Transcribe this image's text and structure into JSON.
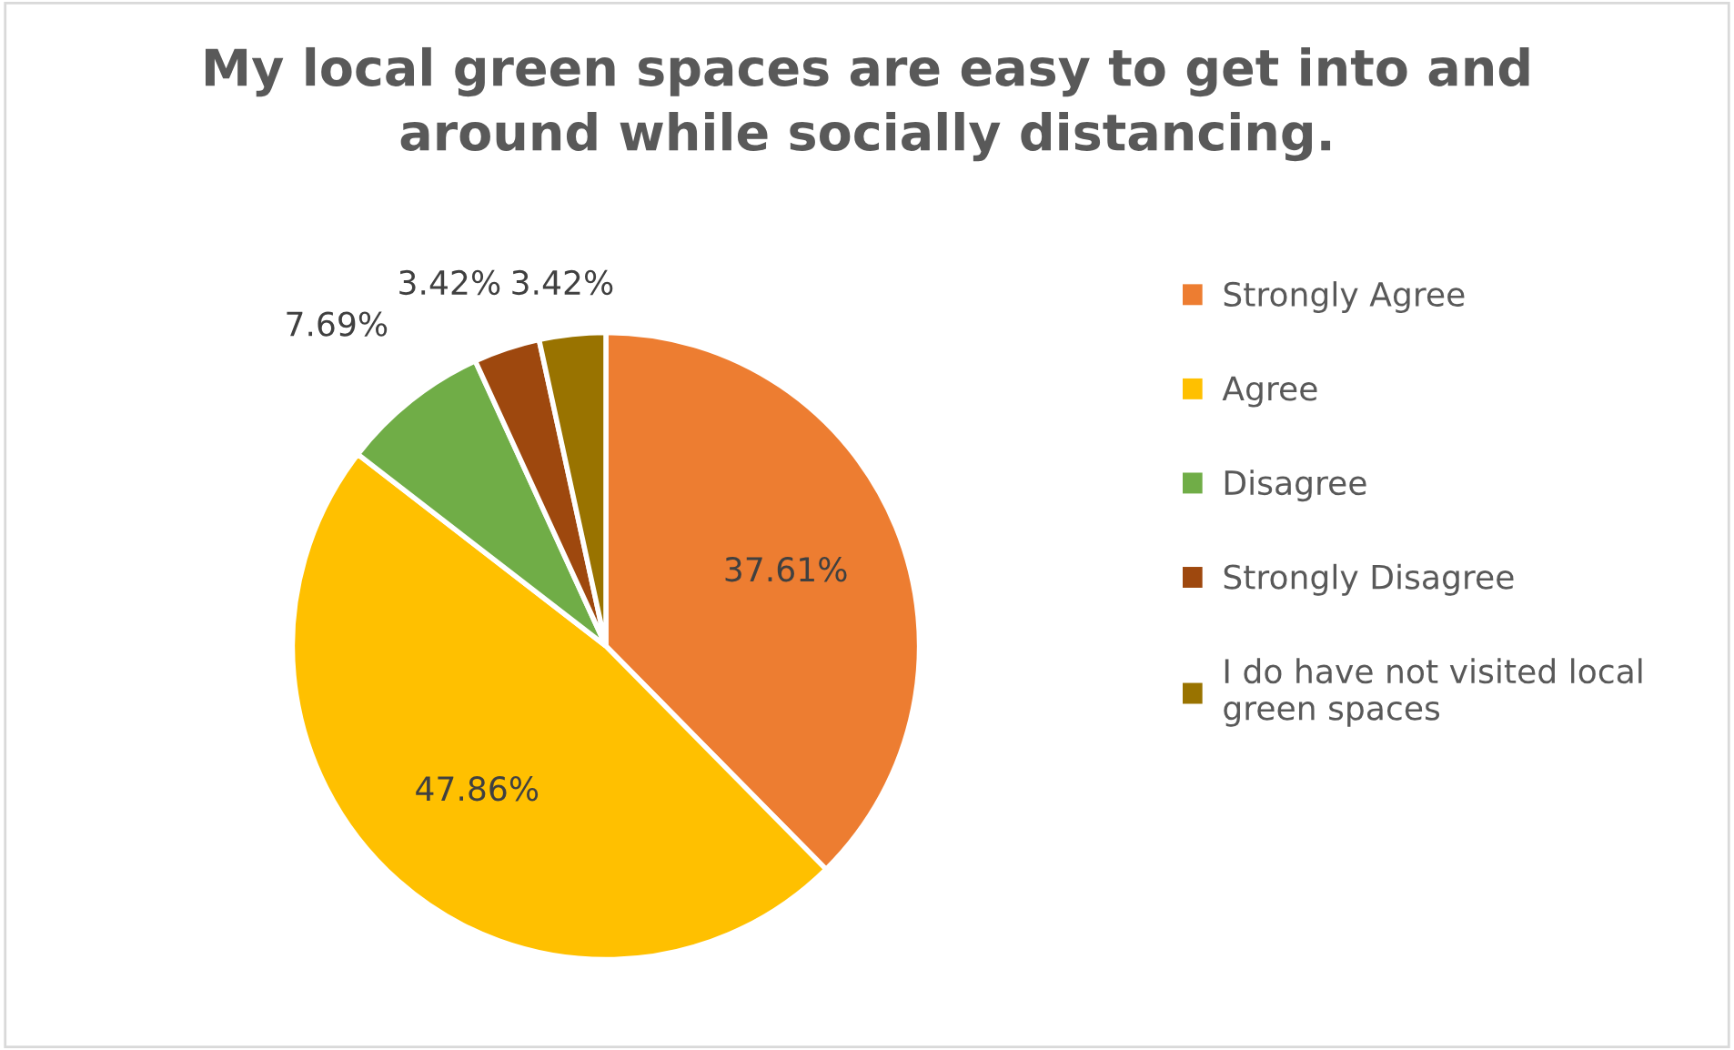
{
  "chart_data": {
    "type": "pie",
    "title": "My local green spaces are easy to get into and\naround while socially distancing.",
    "categories": [
      "Strongly Agree",
      "Agree",
      "Disagree",
      "Strongly Disagree",
      "I do have not visited local\ngreen spaces"
    ],
    "values": [
      37.61,
      47.86,
      7.69,
      3.42,
      3.42
    ],
    "colors": [
      "#ed7d31",
      "#ffc000",
      "#70ad47",
      "#9e480e",
      "#997300"
    ],
    "value_labels": [
      "37.61%",
      "47.86%",
      "7.69%",
      "3.42%",
      "3.42%"
    ],
    "legend": "right"
  }
}
